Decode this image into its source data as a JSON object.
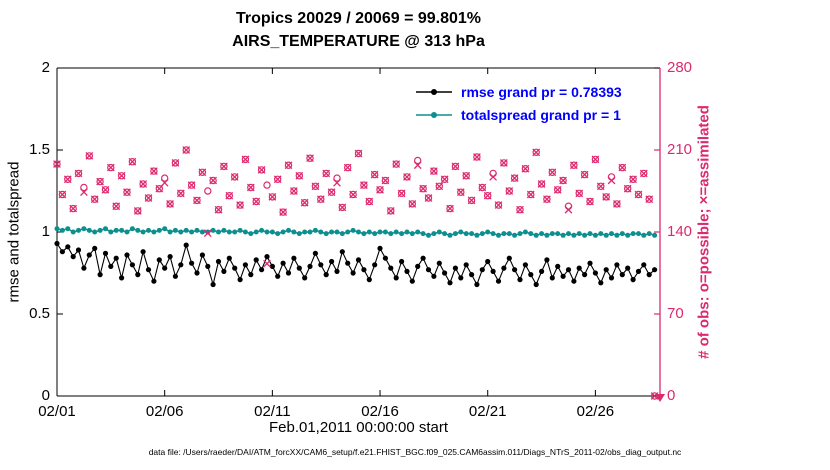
{
  "figure": {
    "title_line1": "Tropics 20029 / 20069 = 99.801%",
    "title_line2": "AIRS_TEMPERATURE @ 313 hPa",
    "xlabel": "Feb.01,2011 00:00:00 start",
    "ylabel_left": "rmse and totalspread",
    "ylabel_right": "# of obs: o=possible; ×=assimilated",
    "caption": "data file: /Users/raeder/DAI/ATM_forcXX/CAM6_setup/f.e21.FHIST_BGC.f09_025.CAM6assim.011/Diags_NTrS_2011-02/obs_diag_output.nc",
    "legend": [
      {
        "label": "rmse grand pr = 0.78393"
      },
      {
        "label": "totalspread grand pr = 1"
      }
    ],
    "colors": {
      "obs_axis": "#dc2a6e",
      "legend_text": "#0000ff",
      "axis_text": "#000000",
      "rmse": "#000000",
      "totalspread": "#0d8f8f"
    }
  },
  "chart_data": {
    "type": "line",
    "title": "Tropics 20029 / 20069 = 99.801% | AIRS_TEMPERATURE @ 313 hPa",
    "xlabel": "Feb.01,2011 00:00:00 start",
    "ylabel_left": "rmse and totalspread",
    "ylabel_right": "# of obs: o=possible; ×=assimilated",
    "grid": false,
    "legend_position": "top-right-inside",
    "xlim": [
      0,
      28
    ],
    "ylim_left": [
      0,
      2
    ],
    "ylim_right": [
      0,
      280
    ],
    "xticks": {
      "positions": [
        0,
        5,
        10,
        15,
        20,
        25
      ],
      "labels": [
        "02/01",
        "02/06",
        "02/11",
        "02/16",
        "02/21",
        "02/26"
      ]
    },
    "yticks_left": [
      0,
      0.5,
      1,
      1.5,
      2
    ],
    "yticks_right": [
      0,
      70,
      140,
      210,
      280
    ],
    "x": {
      "start": 0,
      "step": 0.25,
      "count": 112,
      "unit": "days since Feb 01, 2011 00:00"
    },
    "series": [
      {
        "name": "rmse",
        "legend": "rmse grand pr = 0.78393",
        "axis": "left",
        "color": "#000000",
        "marker": "dot",
        "z": 2,
        "line_width": 1.1,
        "marker_size": 2.6,
        "values": [
          0.93,
          0.88,
          0.91,
          0.85,
          0.89,
          0.78,
          0.86,
          0.9,
          0.74,
          0.87,
          0.79,
          0.84,
          0.72,
          0.86,
          0.8,
          0.74,
          0.88,
          0.77,
          0.7,
          0.83,
          0.78,
          0.85,
          0.73,
          0.8,
          0.92,
          0.81,
          0.75,
          0.86,
          0.79,
          0.68,
          0.82,
          0.76,
          0.84,
          0.78,
          0.71,
          0.8,
          0.74,
          0.83,
          0.77,
          0.85,
          0.79,
          0.73,
          0.81,
          0.75,
          0.84,
          0.78,
          0.72,
          0.79,
          0.87,
          0.8,
          0.74,
          0.82,
          0.76,
          0.88,
          0.81,
          0.75,
          0.83,
          0.77,
          0.71,
          0.8,
          0.9,
          0.84,
          0.78,
          0.72,
          0.82,
          0.76,
          0.7,
          0.79,
          0.84,
          0.77,
          0.73,
          0.81,
          0.75,
          0.69,
          0.78,
          0.72,
          0.8,
          0.74,
          0.68,
          0.77,
          0.82,
          0.76,
          0.7,
          0.78,
          0.84,
          0.77,
          0.71,
          0.8,
          0.74,
          0.68,
          0.76,
          0.83,
          0.72,
          0.79,
          0.73,
          0.77,
          0.7,
          0.78,
          0.74,
          0.81,
          0.75,
          0.69,
          0.77,
          0.72,
          0.8,
          0.74,
          0.78,
          0.71,
          0.76,
          0.8,
          0.74,
          0.77
        ]
      },
      {
        "name": "totalspread",
        "legend": "totalspread grand pr = 1",
        "axis": "left",
        "color": "#0d8f8f",
        "marker": "dot",
        "z": 1,
        "line_width": 1.5,
        "marker_size": 2.5,
        "values": [
          1.02,
          1.01,
          1.02,
          1.0,
          1.01,
          1.02,
          1.01,
          1.0,
          1.01,
          1.02,
          1.0,
          1.01,
          1.01,
          1.0,
          1.02,
          1.01,
          1.0,
          1.01,
          1.0,
          1.01,
          1.02,
          1.0,
          1.01,
          1.0,
          1.01,
          1.0,
          1.01,
          1.0,
          1.0,
          1.01,
          1.0,
          1.01,
          1.0,
          1.0,
          1.01,
          1.0,
          0.99,
          1.0,
          1.01,
          1.0,
          1.0,
          0.99,
          1.0,
          1.01,
          1.0,
          0.99,
          1.0,
          1.0,
          1.01,
          1.0,
          0.99,
          1.0,
          1.0,
          0.99,
          1.0,
          1.01,
          1.0,
          0.99,
          1.0,
          0.99,
          1.0,
          1.0,
          0.99,
          1.0,
          0.99,
          1.0,
          0.99,
          1.0,
          0.99,
          0.98,
          0.99,
          1.0,
          0.99,
          0.98,
          0.99,
          1.0,
          0.99,
          0.99,
          0.98,
          0.99,
          1.0,
          0.99,
          0.98,
          0.99,
          0.99,
          0.98,
          0.99,
          1.0,
          0.99,
          0.98,
          0.99,
          0.98,
          0.99,
          0.99,
          0.98,
          0.99,
          0.98,
          0.99,
          0.98,
          0.99,
          0.98,
          0.99,
          0.98,
          0.99,
          0.98,
          0.99,
          0.98,
          0.99,
          0.99,
          0.98,
          0.99,
          0.98
        ]
      },
      {
        "name": "possible-obs",
        "axis": "right",
        "color": "#dc2a6e",
        "marker": "circle-open",
        "z": 3,
        "marker_size": 3.1,
        "values": [
          198,
          172,
          185,
          160,
          190,
          178,
          205,
          168,
          183,
          176,
          195,
          162,
          188,
          174,
          200,
          158,
          181,
          169,
          192,
          177,
          186,
          164,
          199,
          173,
          210,
          180,
          167,
          191,
          175,
          184,
          159,
          196,
          171,
          187,
          163,
          202,
          178,
          166,
          193,
          180,
          170,
          185,
          157,
          197,
          175,
          188,
          165,
          203,
          179,
          168,
          190,
          174,
          186,
          161,
          195,
          172,
          207,
          180,
          166,
          189,
          176,
          184,
          158,
          198,
          173,
          187,
          164,
          201,
          177,
          169,
          192,
          179,
          185,
          160,
          196,
          174,
          188,
          167,
          204,
          178,
          171,
          190,
          163,
          199,
          175,
          186,
          159,
          194,
          172,
          208,
          181,
          168,
          191,
          176,
          184,
          162,
          197,
          173,
          189,
          166,
          202,
          179,
          170,
          187,
          164,
          195,
          177,
          185,
          172,
          190,
          168,
          0
        ]
      },
      {
        "name": "assimilated-obs",
        "axis": "right",
        "color": "#dc2a6e",
        "marker": "x",
        "z": 4,
        "marker_size": 3.4,
        "values": [
          198,
          172,
          185,
          160,
          190,
          174,
          205,
          168,
          183,
          176,
          195,
          162,
          188,
          174,
          200,
          158,
          181,
          169,
          192,
          177,
          182,
          164,
          199,
          173,
          210,
          180,
          167,
          191,
          139,
          184,
          159,
          196,
          171,
          187,
          163,
          202,
          178,
          166,
          193,
          113,
          170,
          185,
          157,
          197,
          175,
          188,
          165,
          203,
          179,
          168,
          190,
          174,
          182,
          161,
          195,
          172,
          207,
          180,
          166,
          189,
          176,
          184,
          158,
          198,
          173,
          187,
          164,
          197,
          177,
          169,
          192,
          179,
          185,
          160,
          196,
          174,
          188,
          167,
          204,
          178,
          171,
          187,
          163,
          199,
          175,
          186,
          159,
          194,
          172,
          208,
          181,
          168,
          191,
          176,
          184,
          159,
          197,
          173,
          189,
          166,
          202,
          179,
          170,
          184,
          164,
          195,
          177,
          185,
          172,
          190,
          168,
          0
        ]
      }
    ]
  }
}
